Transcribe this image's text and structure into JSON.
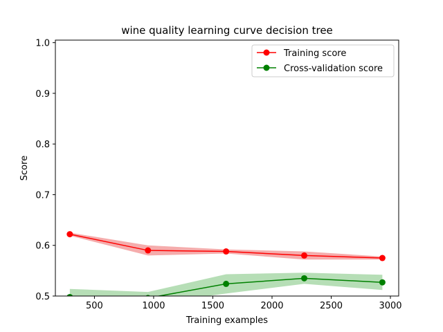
{
  "chart_data": {
    "type": "line",
    "title": "wine quality learning curve decision tree",
    "xlabel": "Training examples",
    "ylabel": "Score",
    "xlim": [
      170,
      3070
    ],
    "ylim": [
      0.5,
      1.005
    ],
    "xticks": [
      500,
      1000,
      1500,
      2000,
      2500,
      3000
    ],
    "xtick_labels": [
      "500",
      "1000",
      "1500",
      "2000",
      "2500",
      "3000"
    ],
    "yticks": [
      0.5,
      0.6,
      0.7,
      0.8,
      0.9,
      1.0
    ],
    "ytick_labels": [
      "0.5",
      "0.6",
      "0.7",
      "0.8",
      "0.9",
      "1.0"
    ],
    "grid": false,
    "legend_position": "top-right",
    "x": [
      292,
      952,
      1612,
      2272,
      2932
    ],
    "series": [
      {
        "name": "Training score",
        "color": "#ff0000",
        "band_color": "#f08080",
        "marker": "circle",
        "values": [
          0.622,
          0.59,
          0.588,
          0.58,
          0.575
        ],
        "band_upper": [
          0.625,
          0.6,
          0.592,
          0.588,
          0.578
        ],
        "band_lower": [
          0.619,
          0.58,
          0.584,
          0.572,
          0.572
        ]
      },
      {
        "name": "Cross-validation score",
        "color": "#008000",
        "band_color": "#8fcc8f",
        "marker": "circle",
        "values": [
          0.498,
          0.496,
          0.524,
          0.535,
          0.527
        ],
        "band_upper": [
          0.514,
          0.508,
          0.543,
          0.546,
          0.542
        ],
        "band_lower": [
          0.482,
          0.484,
          0.505,
          0.524,
          0.512
        ]
      }
    ]
  }
}
